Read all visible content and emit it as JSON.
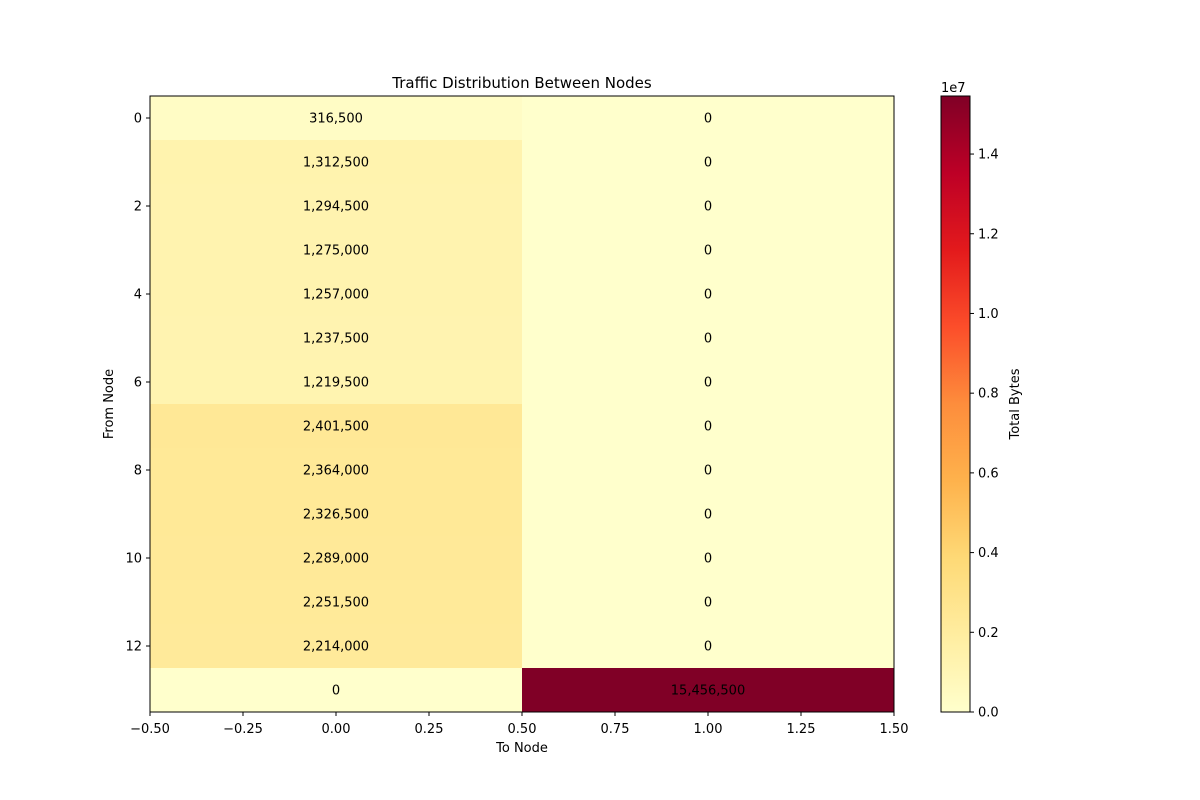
{
  "chart_data": {
    "type": "heatmap",
    "title": "Traffic Distribution Between Nodes",
    "xlabel": "To Node",
    "ylabel": "From Node",
    "xlim": [
      -0.5,
      1.5
    ],
    "ylim": [
      13.5,
      -0.5
    ],
    "x_ticks": [
      -0.5,
      -0.25,
      0.0,
      0.25,
      0.5,
      0.75,
      1.0,
      1.25,
      1.5
    ],
    "x_tick_labels": [
      "−0.50",
      "−0.25",
      "0.00",
      "0.25",
      "0.50",
      "0.75",
      "1.00",
      "1.25",
      "1.50"
    ],
    "y_ticks": [
      0,
      2,
      4,
      6,
      8,
      10,
      12
    ],
    "y_tick_labels": [
      "0",
      "2",
      "4",
      "6",
      "8",
      "10",
      "12"
    ],
    "values": [
      [
        316500,
        0
      ],
      [
        1312500,
        0
      ],
      [
        1294500,
        0
      ],
      [
        1275000,
        0
      ],
      [
        1257000,
        0
      ],
      [
        1237500,
        0
      ],
      [
        1219500,
        0
      ],
      [
        2401500,
        0
      ],
      [
        2364000,
        0
      ],
      [
        2326500,
        0
      ],
      [
        2289000,
        0
      ],
      [
        2251500,
        0
      ],
      [
        2214000,
        0
      ],
      [
        0,
        15456500
      ]
    ],
    "cell_labels": [
      [
        "316,500",
        "0"
      ],
      [
        "1,312,500",
        "0"
      ],
      [
        "1,294,500",
        "0"
      ],
      [
        "1,275,000",
        "0"
      ],
      [
        "1,257,000",
        "0"
      ],
      [
        "1,237,500",
        "0"
      ],
      [
        "1,219,500",
        "0"
      ],
      [
        "2,401,500",
        "0"
      ],
      [
        "2,364,000",
        "0"
      ],
      [
        "2,326,500",
        "0"
      ],
      [
        "2,289,000",
        "0"
      ],
      [
        "2,251,500",
        "0"
      ],
      [
        "2,214,000",
        "0"
      ],
      [
        "0",
        "15,456,500"
      ]
    ],
    "colorbar": {
      "label": "Total Bytes",
      "colormap": "YlOrRd",
      "min": 0,
      "max": 15456500,
      "offset_label": "1e7",
      "ticks": [
        0,
        2000000,
        4000000,
        6000000,
        8000000,
        10000000,
        12000000,
        14000000
      ],
      "tick_labels": [
        "0.0",
        "0.2",
        "0.4",
        "0.6",
        "0.8",
        "1.0",
        "1.2",
        "1.4"
      ]
    },
    "colormap_stops": [
      "#ffffcc",
      "#ffeda0",
      "#fed976",
      "#feb24c",
      "#fd8d3c",
      "#fc4e2a",
      "#e31a1c",
      "#bd0026",
      "#800026"
    ]
  }
}
